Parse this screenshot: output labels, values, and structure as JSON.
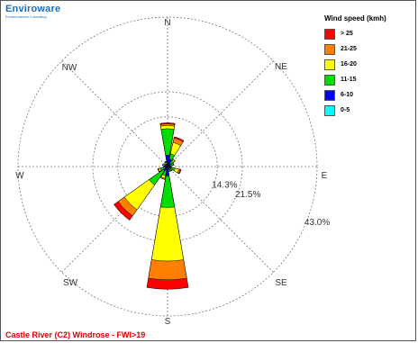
{
  "logo": {
    "name": "Enviroware",
    "tagline": "Environmental Consulting"
  },
  "chart_data": {
    "type": "windrose",
    "title": "Castle River (C2) Windrose - FWI>19",
    "directions": [
      "N",
      "NE",
      "E",
      "SE",
      "S",
      "SW",
      "W",
      "NW"
    ],
    "ring_labels": [
      "14.3%",
      "21.5%",
      "43.0%"
    ],
    "ring_values": [
      14.3,
      21.5,
      43.0
    ],
    "legend_title": "Wind speed (kmh)",
    "speed_bins": [
      {
        "label": "> 25",
        "color": "#ff0000"
      },
      {
        "label": "21-25",
        "color": "#ff7f00"
      },
      {
        "label": "16-20",
        "color": "#ffff00"
      },
      {
        "label": "11-15",
        "color": "#00dd00"
      },
      {
        "label": "6-10",
        "color": "#0000ff"
      },
      {
        "label": "0-5",
        "color": "#00ffff"
      }
    ],
    "sector_width_deg": 22.5,
    "petals": [
      {
        "angle": 0,
        "cumulative": [
          0.3,
          3.3,
          10.9,
          11.8,
          12.3,
          12.6
        ]
      },
      {
        "angle": 22.5,
        "cumulative": [
          0.3,
          2.2,
          3.8,
          7.1,
          8.4,
          8.8
        ]
      },
      {
        "angle": 45,
        "cumulative": [
          0.2,
          1.1,
          2.2,
          2.6,
          2.7,
          2.7
        ]
      },
      {
        "angle": 67.5,
        "cumulative": [
          0.1,
          0.8,
          1.5,
          1.8,
          1.9,
          1.9
        ]
      },
      {
        "angle": 90,
        "cumulative": [
          0.1,
          0.5,
          0.8,
          0.9,
          0.9,
          0.9
        ]
      },
      {
        "angle": 112.5,
        "cumulative": [
          0.2,
          1.1,
          2.2,
          3.3,
          3.7,
          4.0
        ]
      },
      {
        "angle": 135,
        "cumulative": [
          0.2,
          0.8,
          1.4,
          1.6,
          1.7,
          1.7
        ]
      },
      {
        "angle": 157.5,
        "cumulative": [
          0.2,
          0.8,
          1.4,
          1.5,
          1.5,
          1.5
        ]
      },
      {
        "angle": 180,
        "cumulative": [
          0.3,
          2.7,
          11.8,
          27.2,
          32.6,
          35.3
        ]
      },
      {
        "angle": 202.5,
        "cumulative": [
          0.2,
          1.1,
          2.7,
          3.5,
          3.8,
          3.8
        ]
      },
      {
        "angle": 225,
        "cumulative": [
          0.3,
          1.6,
          6.5,
          15.2,
          17.4,
          18.9
        ]
      },
      {
        "angle": 247.5,
        "cumulative": [
          0.2,
          0.8,
          2.2,
          2.7,
          2.9,
          2.9
        ]
      },
      {
        "angle": 270,
        "cumulative": [
          0.1,
          0.5,
          0.8,
          0.9,
          1.0,
          1.0
        ]
      },
      {
        "angle": 292.5,
        "cumulative": [
          0.2,
          0.8,
          1.1,
          1.4,
          1.5,
          1.5
        ]
      },
      {
        "angle": 315,
        "cumulative": [
          0.2,
          0.5,
          0.8,
          0.9,
          0.9,
          0.9
        ]
      },
      {
        "angle": 337.5,
        "cumulative": [
          0.2,
          0.8,
          1.4,
          1.5,
          1.6,
          1.6
        ]
      }
    ]
  }
}
